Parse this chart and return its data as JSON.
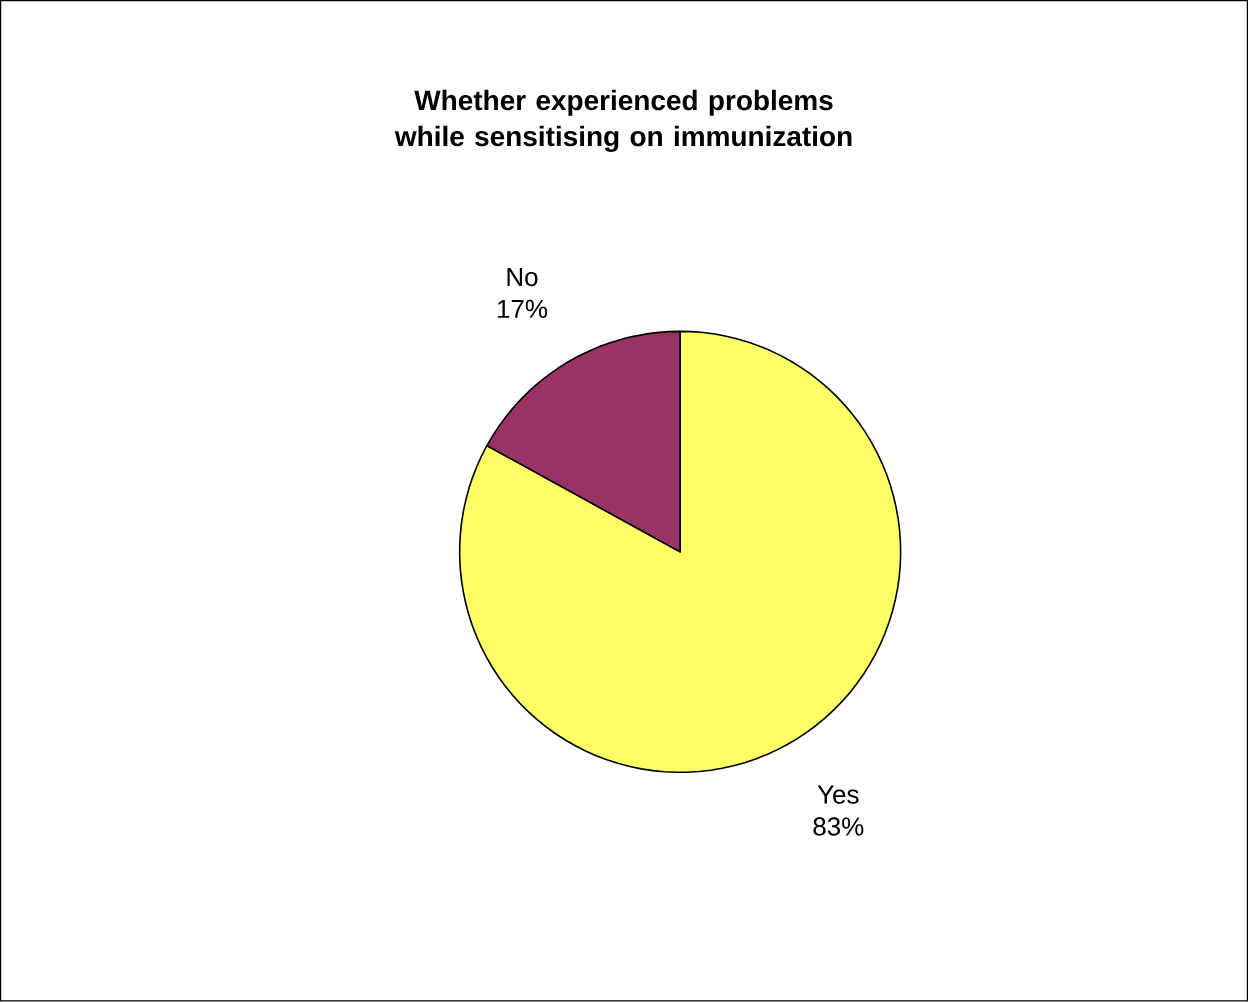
{
  "chart_data": {
    "type": "pie",
    "title": "Whether experienced problems while sensitising on immunization",
    "categories": [
      "Yes",
      "No"
    ],
    "values": [
      83,
      17
    ],
    "colors": [
      "#ffff66",
      "#993366"
    ],
    "value_labels": [
      "83%",
      "17%"
    ]
  }
}
